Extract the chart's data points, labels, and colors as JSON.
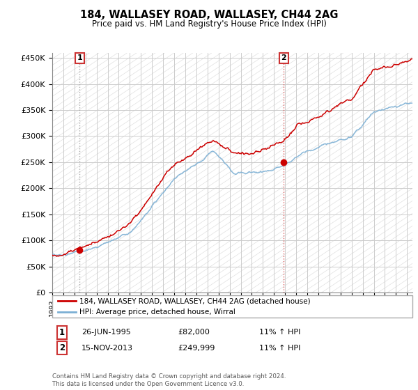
{
  "title": "184, WALLASEY ROAD, WALLASEY, CH44 2AG",
  "subtitle": "Price paid vs. HM Land Registry's House Price Index (HPI)",
  "ylabel_ticks": [
    "£0",
    "£50K",
    "£100K",
    "£150K",
    "£200K",
    "£250K",
    "£300K",
    "£350K",
    "£400K",
    "£450K"
  ],
  "ytick_vals": [
    0,
    50000,
    100000,
    150000,
    200000,
    250000,
    300000,
    350000,
    400000,
    450000
  ],
  "ylim": [
    0,
    460000
  ],
  "xlim_start": 1993.0,
  "xlim_end": 2025.5,
  "sale1_date": 1995.48,
  "sale1_price": 82000,
  "sale2_date": 2013.88,
  "sale2_price": 249999,
  "legend_line1": "184, WALLASEY ROAD, WALLASEY, CH44 2AG (detached house)",
  "legend_line2": "HPI: Average price, detached house, Wirral",
  "table_row1": [
    "1",
    "26-JUN-1995",
    "£82,000",
    "11% ↑ HPI"
  ],
  "table_row2": [
    "2",
    "15-NOV-2013",
    "£249,999",
    "11% ↑ HPI"
  ],
  "footnote": "Contains HM Land Registry data © Crown copyright and database right 2024.\nThis data is licensed under the Open Government Licence v3.0.",
  "line_color_red": "#cc0000",
  "line_color_blue": "#7bafd4",
  "marker_color_red": "#cc0000",
  "vline1_color": "#aaaaaa",
  "vline2_color": "#dd6666",
  "grid_color": "#cccccc",
  "background_color": "#ffffff"
}
